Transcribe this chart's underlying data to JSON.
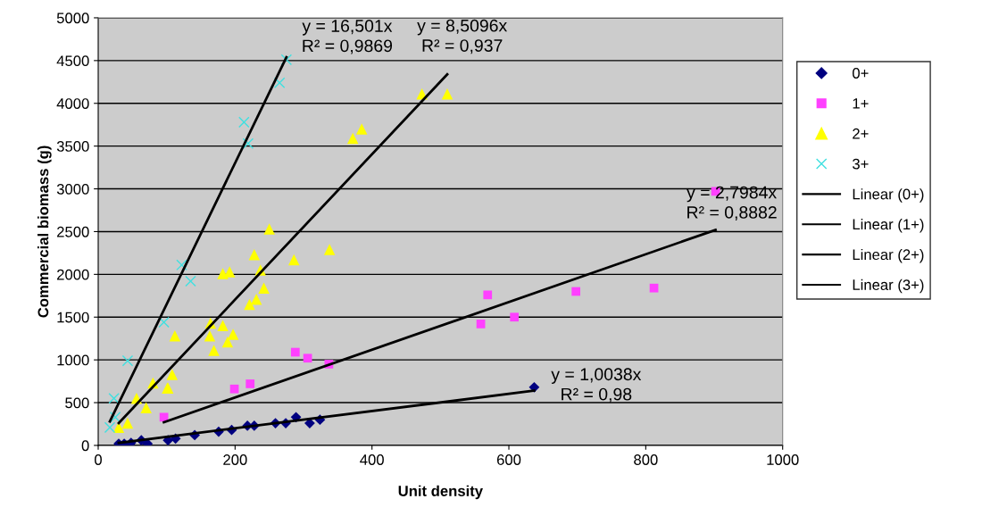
{
  "chart_data": {
    "type": "scatter",
    "xlabel": "Unit density",
    "ylabel": "Commercial biomass (g)",
    "xlim": [
      0,
      1000
    ],
    "ylim": [
      0,
      5000
    ],
    "xticks": [
      0,
      200,
      400,
      600,
      800,
      1000
    ],
    "yticks": [
      0,
      500,
      1000,
      1500,
      2000,
      2500,
      3000,
      3500,
      4000,
      4500,
      5000
    ],
    "grid": "y",
    "legend": "right",
    "series": [
      {
        "name": "0+",
        "color": "#000080",
        "marker": "diamond",
        "x": [
          30,
          38,
          48,
          63,
          72,
          102,
          113,
          141,
          176,
          195,
          218,
          228,
          259,
          274,
          289,
          309,
          324,
          637
        ],
        "values": [
          20,
          20,
          30,
          60,
          20,
          60,
          80,
          120,
          160,
          180,
          230,
          230,
          260,
          260,
          330,
          260,
          300,
          680
        ]
      },
      {
        "name": "1+",
        "color": "#ff40ff",
        "marker": "square",
        "x": [
          96,
          199,
          222,
          288,
          306,
          337,
          559,
          569,
          608,
          698,
          812,
          902
        ],
        "values": [
          330,
          660,
          720,
          1090,
          1020,
          950,
          1420,
          1760,
          1500,
          1800,
          1840,
          2970
        ]
      },
      {
        "name": "2+",
        "color": "#ffff00",
        "marker": "triangle",
        "x": [
          30,
          43,
          56,
          70,
          80,
          102,
          108,
          101,
          112,
          163,
          164,
          169,
          182,
          189,
          197,
          221,
          231,
          242,
          237,
          182,
          192,
          228,
          250,
          286,
          338,
          372,
          385,
          473,
          510
        ],
        "values": [
          210,
          260,
          550,
          440,
          730,
          670,
          830,
          670,
          1280,
          1280,
          1430,
          1110,
          1400,
          1210,
          1300,
          1650,
          1710,
          1840,
          2050,
          2010,
          2030,
          2230,
          2530,
          2170,
          2290,
          3590,
          3700,
          4110,
          4110
        ]
      },
      {
        "name": "3+",
        "color": "#40e0e0",
        "marker": "cross",
        "x": [
          17,
          23,
          25,
          43,
          96,
          122,
          135,
          213,
          219,
          265,
          275
        ],
        "values": [
          210,
          550,
          330,
          990,
          1440,
          2110,
          1920,
          3780,
          3530,
          4240,
          4510
        ]
      },
      {
        "name": "Linear (0+)",
        "type": "line",
        "color": "#000000",
        "marker": "none",
        "x": [
          30,
          637
        ],
        "values": [
          30,
          640
        ]
      },
      {
        "name": "Linear (1+)",
        "type": "line",
        "color": "#000000",
        "marker": "none",
        "x": [
          96,
          902
        ],
        "values": [
          270,
          2520
        ]
      },
      {
        "name": "Linear (2+)",
        "type": "line",
        "color": "#000000",
        "marker": "none",
        "x": [
          30,
          510
        ],
        "values": [
          260,
          4340
        ]
      },
      {
        "name": "Linear (3+)",
        "type": "line",
        "color": "#000000",
        "marker": "none",
        "x": [
          17,
          275
        ],
        "values": [
          280,
          4540
        ]
      }
    ],
    "annotations": [
      "y = 1,0038x\nR² = 0,98",
      "y = 2,7984x\nR² = 0,8882",
      "y = 8,5096x\nR² = 0,937",
      "y = 16,501x\nR² = 0,9869"
    ]
  }
}
